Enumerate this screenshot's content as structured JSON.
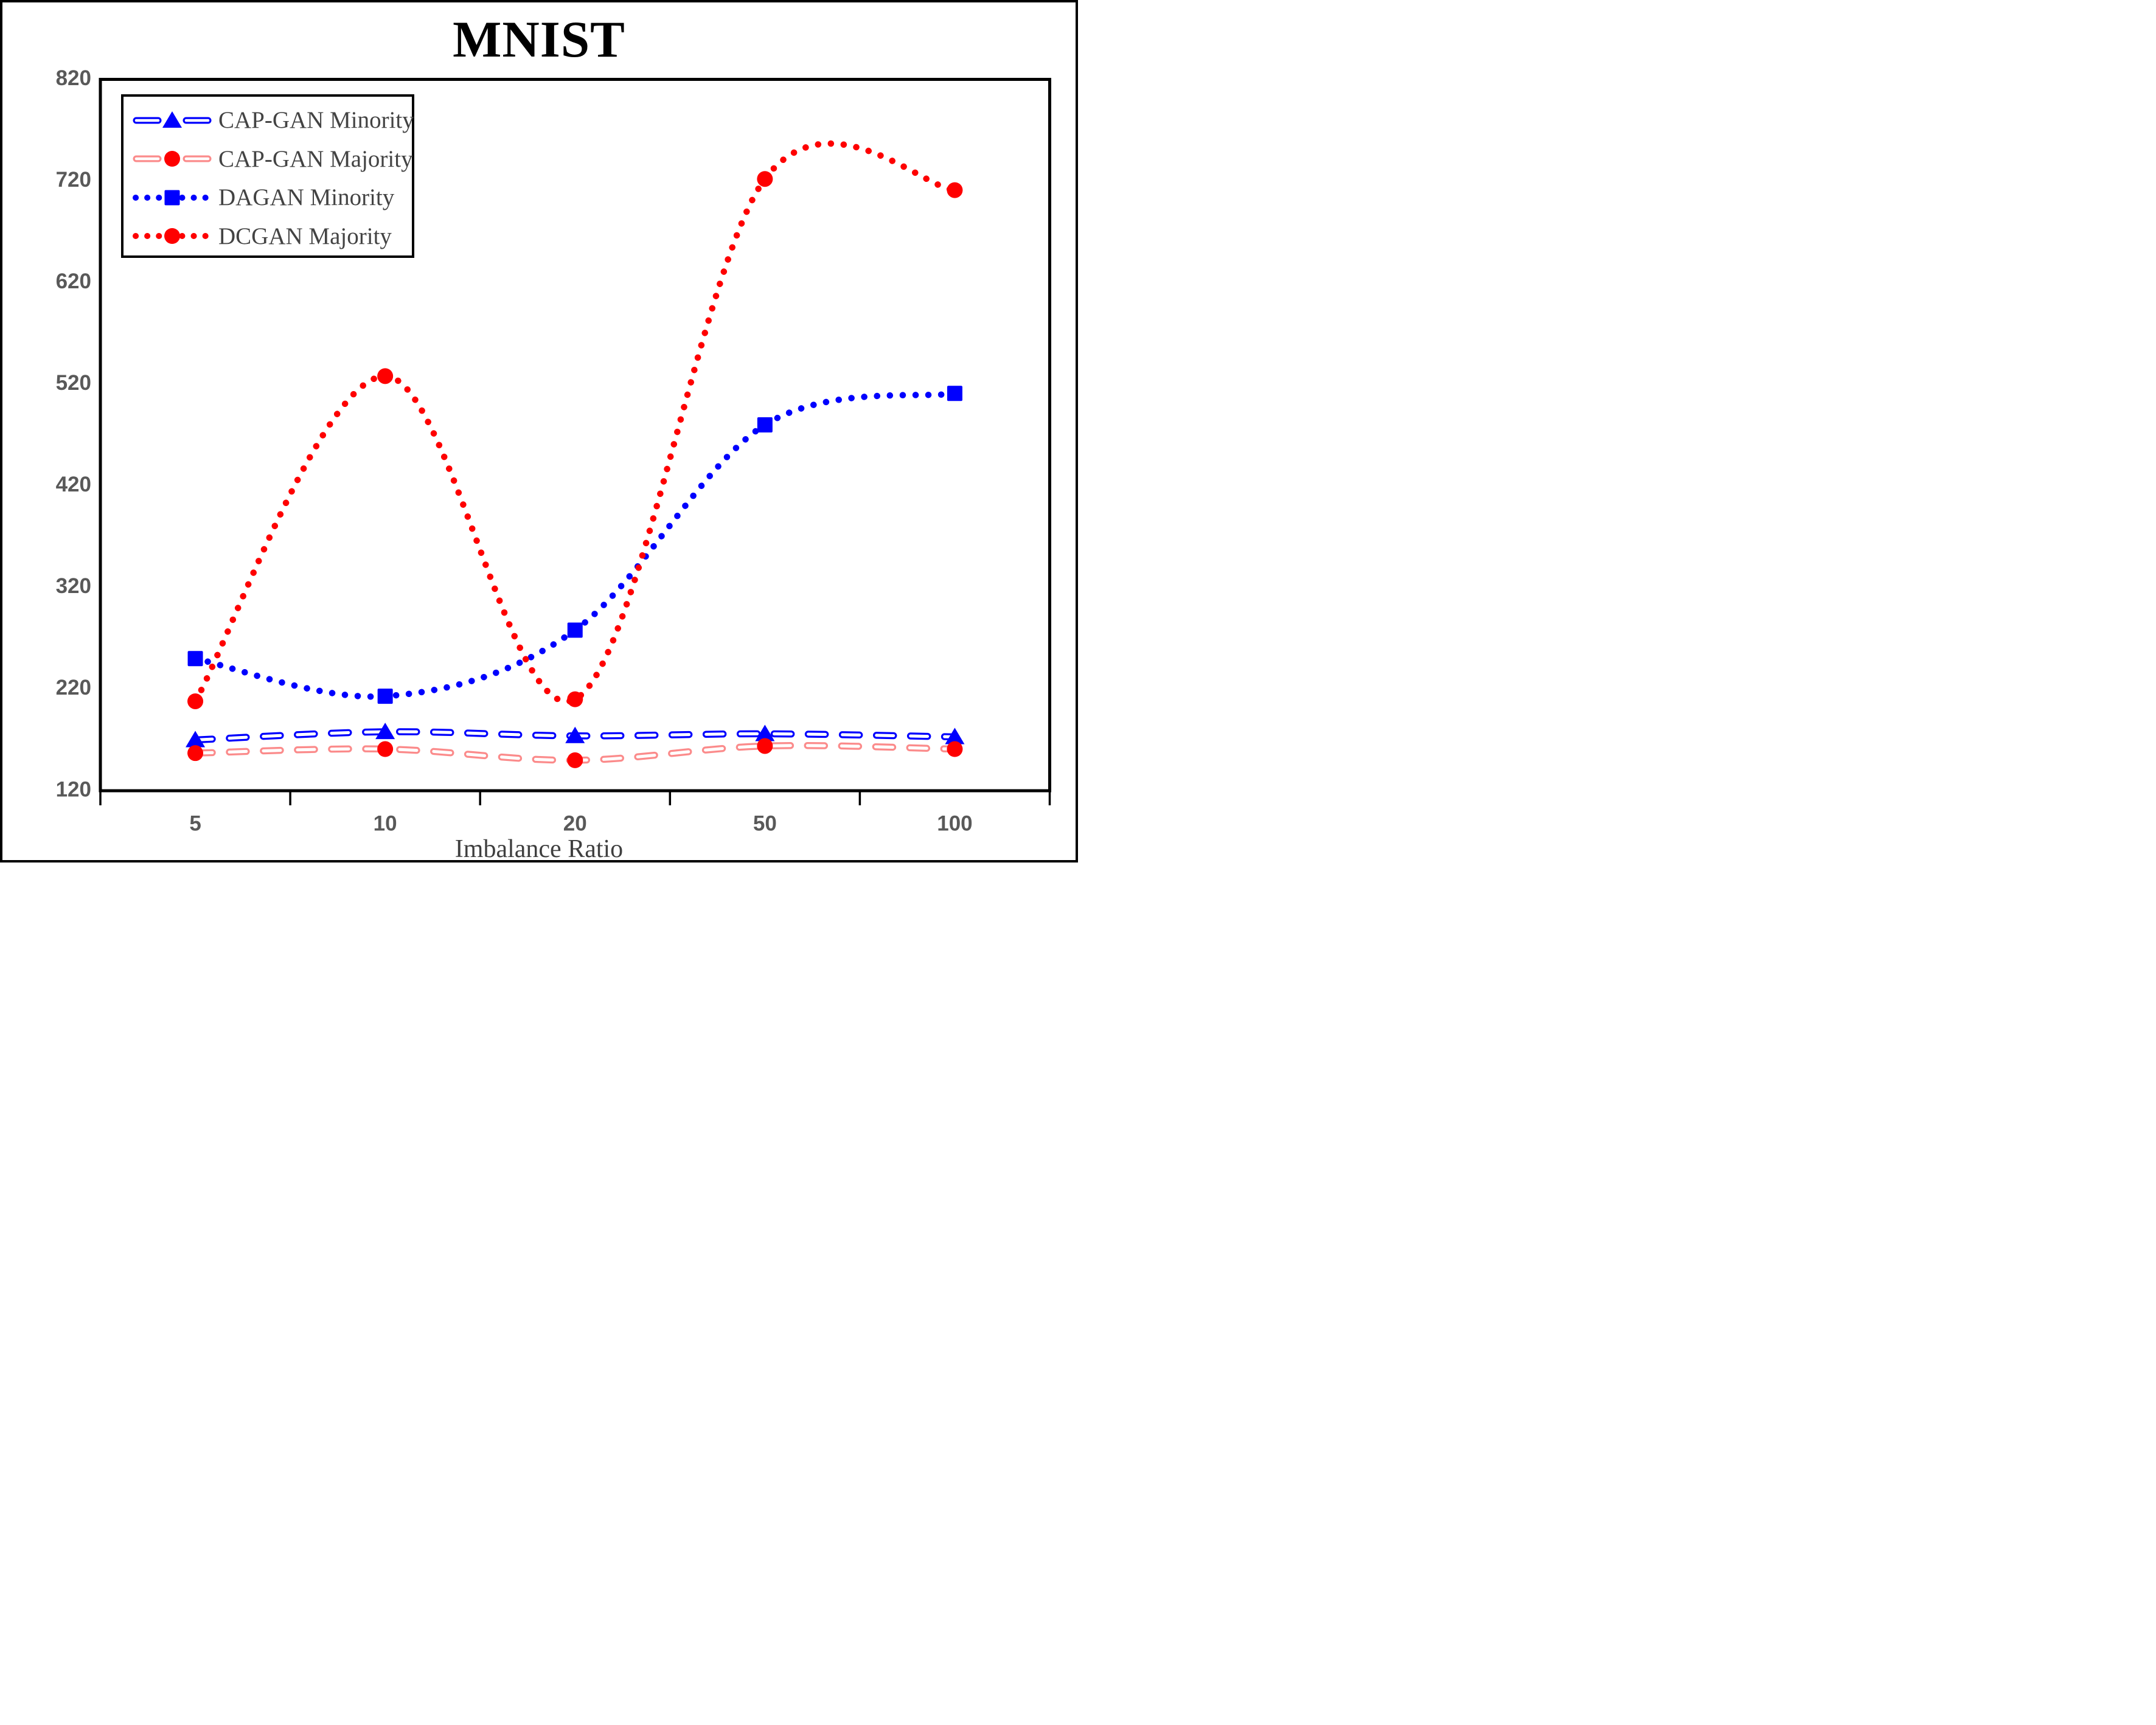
{
  "chart_data": {
    "type": "line",
    "title": "MNIST",
    "xlabel": "Imbalance Ratio",
    "ylabel": "",
    "categories": [
      "5",
      "10",
      "20",
      "50",
      "100"
    ],
    "y_ticks": [
      "820",
      "720",
      "620",
      "520",
      "420",
      "320",
      "220",
      "120"
    ],
    "ylim": [
      120,
      820
    ],
    "grid": false,
    "legend_position": "top-left",
    "series": [
      {
        "name": "CAP-GAN Minority",
        "line_style": "hollow-dash",
        "line_color": "#0000fe",
        "marker": "triangle",
        "marker_color": "#0000fe",
        "values": [
          170,
          178,
          174,
          176,
          173
        ]
      },
      {
        "name": "CAP-GAN Majority",
        "line_style": "hollow-dash",
        "line_color": "#fb8b8b",
        "marker": "circle",
        "marker_color": "#fe0000",
        "values": [
          157,
          161,
          150,
          164,
          161
        ]
      },
      {
        "name": "DAGAN Minority",
        "line_style": "dotted",
        "line_color": "#0000fe",
        "marker": "square",
        "marker_color": "#0000fe",
        "values": [
          250,
          213,
          278,
          480,
          511
        ]
      },
      {
        "name": "DCGAN Majority",
        "line_style": "dotted",
        "line_color": "#fe0000",
        "marker": "circle",
        "marker_color": "#fe0000",
        "values": [
          208,
          528,
          210,
          722,
          711
        ]
      }
    ],
    "colors": {
      "blue": "#0000fe",
      "red": "#fe0000",
      "salmon": "#fb8b8b",
      "tick_text": "#595959",
      "label_text": "#434343",
      "frame": "#000000"
    }
  }
}
